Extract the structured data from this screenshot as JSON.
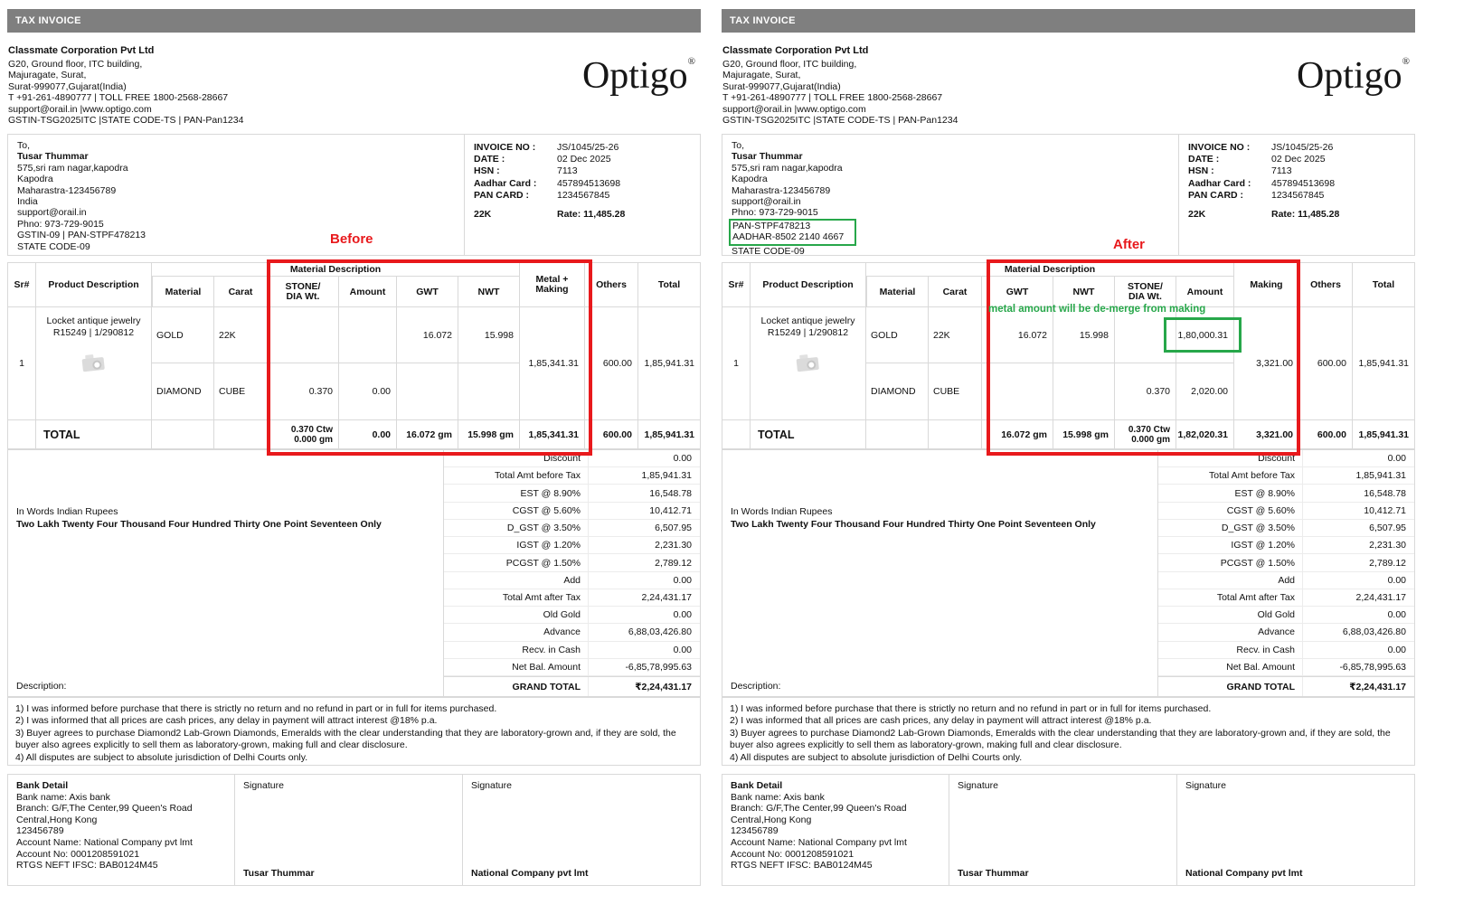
{
  "annotations": {
    "before_label": "Before",
    "after_label": "After",
    "green_note": "metal amount will be de-merge from making",
    "accent_red": "#e8191c",
    "accent_green": "#27a74a",
    "titlebar_gray": "#7f7f7f"
  },
  "left": {
    "title_bar": "TAX INVOICE",
    "company": {
      "name": "Classmate Corporation Pvt Ltd",
      "lines": [
        "G20, Ground floor, ITC building,",
        "Majuragate, Surat,",
        "Surat-999077,Gujarat(India)",
        "T +91-261-4890777 | TOLL FREE 1800-2568-28667",
        "support@orail.in |www.optigo.com",
        "GSTIN-TSG2025ITC |STATE CODE-TS | PAN-Pan1234"
      ],
      "logo": "Optigo",
      "logo_mark": "®"
    },
    "customer": {
      "intro": "To,",
      "name": "Tusar Thummar",
      "lines": [
        "575,sri ram nagar,kapodra",
        "Kapodra",
        "Maharastra-123456789",
        "India",
        "support@orail.in",
        "Phno: 973-729-9015",
        "GSTIN-09 | PAN-STPF478213",
        "STATE CODE-09"
      ]
    },
    "invoice_info": {
      "rows": [
        {
          "label": "INVOICE NO :",
          "value": "JS/1045/25-26"
        },
        {
          "label": "DATE :",
          "value": "02 Dec 2025"
        },
        {
          "label": "HSN :",
          "value": "7113"
        },
        {
          "label": "Aadhar Card :",
          "value": "457894513698"
        },
        {
          "label": "PAN CARD :",
          "value": "1234567845"
        }
      ],
      "karat": "22K",
      "rate": "Rate: 11,485.28"
    },
    "table": {
      "sr_header": "Sr#",
      "product_header": "Product Description",
      "group_header": "Material Description",
      "material_header": "Material",
      "carat_header": "Carat",
      "col_headers": [
        "STONE/\nDIA Wt.",
        "Amount",
        "GWT",
        "NWT"
      ],
      "merged_header": "Metal +\nMaking",
      "others_header": "Others",
      "total_header": "Total",
      "sr_value": "1",
      "product_line1": "Locket antique jewelry",
      "product_line2": "R15249 | 1/290812",
      "rows": [
        {
          "material": "GOLD",
          "carat": "22K",
          "cells": [
            "",
            "",
            "16.072",
            "15.998"
          ]
        },
        {
          "material": "DIAMOND",
          "carat": "CUBE",
          "cells": [
            "0.370",
            "0.00",
            "",
            ""
          ]
        }
      ],
      "merged_value": "1,85,341.31",
      "others_value": "600.00",
      "row_total": "1,85,941.31",
      "total_label": "TOTAL",
      "totals": {
        "cells": [
          "0.370 Ctw\n0.000 gm",
          "0.00",
          "16.072 gm",
          "15.998 gm"
        ],
        "merged": "1,85,341.31",
        "others": "600.00",
        "total": "1,85,941.31"
      }
    },
    "summary": {
      "rows": [
        {
          "label": "Discount",
          "value": "0.00"
        },
        {
          "label": "Total Amt before Tax",
          "value": "1,85,941.31"
        },
        {
          "label": "EST @ 8.90%",
          "value": "16,548.78"
        },
        {
          "label": "CGST @ 5.60%",
          "value": "10,412.71"
        },
        {
          "label": "D_GST @ 3.50%",
          "value": "6,507.95"
        },
        {
          "label": "IGST @ 1.20%",
          "value": "2,231.30"
        },
        {
          "label": "PCGST @ 1.50%",
          "value": "2,789.12"
        },
        {
          "label": "Add",
          "value": "0.00"
        },
        {
          "label": "Total Amt after Tax",
          "value": "2,24,431.17"
        },
        {
          "label": "Old Gold",
          "value": "0.00"
        },
        {
          "label": "Advance",
          "value": "6,88,03,426.80"
        },
        {
          "label": "Recv. in Cash",
          "value": "0.00"
        },
        {
          "label": "Net Bal. Amount",
          "value": "-6,85,78,995.63"
        }
      ],
      "grand_label": "GRAND TOTAL",
      "grand_value": "₹2,24,431.17"
    },
    "in_words_label": "In Words Indian Rupees",
    "in_words": "Two Lakh Twenty Four Thousand Four Hundred Thirty One Point Seventeen Only",
    "description_label": "Description:",
    "terms": [
      "1) I was informed before purchase that there is strictly no return and no refund in part or in full for items purchased.",
      "2) I was informed that all prices are cash prices, any delay in payment will attract interest @18% p.a.",
      "3) Buyer agrees to purchase Diamond2 Lab-Grown Diamonds, Emeralds with the clear understanding that they are laboratory-grown and, if they are sold, the buyer also agrees explicitly to sell them as laboratory-grown, making full and clear disclosure.",
      "4) All disputes are subject to absolute jurisdiction of Delhi Courts only."
    ],
    "bank": {
      "title": "Bank Detail",
      "lines": [
        "Bank name: Axis bank",
        "Branch: G/F,The Center,99 Queen's Road Central,Hong Kong",
        "123456789",
        "Account Name: National Company pvt lmt",
        "Account No: 0001208591021",
        "RTGS NEFT IFSC: BAB0124M45"
      ]
    },
    "signatures": [
      {
        "label": "Signature",
        "name": "Tusar Thummar"
      },
      {
        "label": "Signature",
        "name": "National Company pvt lmt"
      }
    ]
  },
  "right": {
    "title_bar": "TAX INVOICE",
    "company": {
      "name": "Classmate Corporation Pvt Ltd",
      "lines": [
        "G20, Ground floor, ITC building,",
        "Majuragate, Surat,",
        "Surat-999077,Gujarat(India)",
        "T +91-261-4890777 | TOLL FREE 1800-2568-28667",
        "support@orail.in |www.optigo.com",
        "GSTIN-TSG2025ITC |STATE CODE-TS | PAN-Pan1234"
      ],
      "logo": "Optigo",
      "logo_mark": "®"
    },
    "customer": {
      "intro": "To,",
      "name": "Tusar Thummar",
      "lines_before": [
        "575,sri ram nagar,kapodra",
        "Kapodra",
        "Maharastra-123456789",
        "support@orail.in",
        "Phno: 973-729-9015"
      ],
      "highlight_lines": [
        "PAN-STPF478213",
        "AADHAR-8502 2140 4667"
      ],
      "lines_after": [
        "STATE CODE-09"
      ]
    },
    "invoice_info": {
      "rows": [
        {
          "label": "INVOICE NO :",
          "value": "JS/1045/25-26"
        },
        {
          "label": "DATE :",
          "value": "02 Dec 2025"
        },
        {
          "label": "HSN :",
          "value": "7113"
        },
        {
          "label": "Aadhar Card :",
          "value": "457894513698"
        },
        {
          "label": "PAN CARD :",
          "value": "1234567845"
        }
      ],
      "karat": "22K",
      "rate": "Rate: 11,485.28"
    },
    "table": {
      "sr_header": "Sr#",
      "product_header": "Product Description",
      "group_header": "Material Description",
      "material_header": "Material",
      "carat_header": "Carat",
      "col_headers": [
        "GWT",
        "NWT",
        "STONE/\nDIA Wt.",
        "Amount"
      ],
      "merged_header": "Making",
      "others_header": "Others",
      "total_header": "Total",
      "sr_value": "1",
      "product_line1": "Locket antique jewelry",
      "product_line2": "R15249 | 1/290812",
      "rows": [
        {
          "material": "GOLD",
          "carat": "22K",
          "cells": [
            "16.072",
            "15.998",
            "",
            "1,80,000.31"
          ]
        },
        {
          "material": "DIAMOND",
          "carat": "CUBE",
          "cells": [
            "",
            "",
            "0.370",
            "2,020.00"
          ]
        }
      ],
      "merged_value": "3,321.00",
      "others_value": "600.00",
      "row_total": "1,85,941.31",
      "total_label": "TOTAL",
      "totals": {
        "cells": [
          "16.072 gm",
          "15.998 gm",
          "0.370 Ctw\n0.000 gm",
          "1,82,020.31"
        ],
        "merged": "3,321.00",
        "others": "600.00",
        "total": "1,85,941.31"
      }
    },
    "summary": {
      "rows": [
        {
          "label": "Discount",
          "value": "0.00"
        },
        {
          "label": "Total Amt before Tax",
          "value": "1,85,941.31"
        },
        {
          "label": "EST @ 8.90%",
          "value": "16,548.78"
        },
        {
          "label": "CGST @ 5.60%",
          "value": "10,412.71"
        },
        {
          "label": "D_GST @ 3.50%",
          "value": "6,507.95"
        },
        {
          "label": "IGST @ 1.20%",
          "value": "2,231.30"
        },
        {
          "label": "PCGST @ 1.50%",
          "value": "2,789.12"
        },
        {
          "label": "Add",
          "value": "0.00"
        },
        {
          "label": "Total Amt after Tax",
          "value": "2,24,431.17"
        },
        {
          "label": "Old Gold",
          "value": "0.00"
        },
        {
          "label": "Advance",
          "value": "6,88,03,426.80"
        },
        {
          "label": "Recv. in Cash",
          "value": "0.00"
        },
        {
          "label": "Net Bal. Amount",
          "value": "-6,85,78,995.63"
        }
      ],
      "grand_label": "GRAND TOTAL",
      "grand_value": "₹2,24,431.17"
    },
    "in_words_label": "In Words Indian Rupees",
    "in_words": "Two Lakh Twenty Four Thousand Four Hundred Thirty One Point Seventeen Only",
    "description_label": "Description:",
    "terms": [
      "1) I was informed before purchase that there is strictly no return and no refund in part or in full for items purchased.",
      "2) I was informed that all prices are cash prices, any delay in payment will attract interest @18% p.a.",
      "3) Buyer agrees to purchase Diamond2 Lab-Grown Diamonds, Emeralds with the clear understanding that they are laboratory-grown and, if they are sold, the buyer also agrees explicitly to sell them as laboratory-grown, making full and clear disclosure.",
      "4) All disputes are subject to absolute jurisdiction of Delhi Courts only."
    ],
    "bank": {
      "title": "Bank Detail",
      "lines": [
        "Bank name: Axis bank",
        "Branch: G/F,The Center,99 Queen's Road Central,Hong Kong",
        "123456789",
        "Account Name: National Company pvt lmt",
        "Account No: 0001208591021",
        "RTGS NEFT IFSC: BAB0124M45"
      ]
    },
    "signatures": [
      {
        "label": "Signature",
        "name": "Tusar Thummar"
      },
      {
        "label": "Signature",
        "name": "National Company pvt lmt"
      }
    ]
  }
}
